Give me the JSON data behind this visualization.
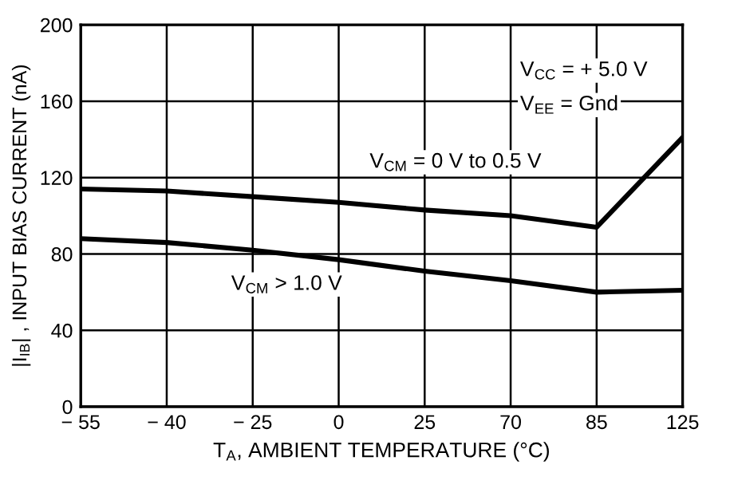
{
  "chart_data": {
    "type": "line",
    "xlabel": "T$_{A}$, AMBIENT TEMPERATURE (°C)",
    "ylabel": "|I$_{IB}$| , INPUT BIAS CURRENT (nA)",
    "categories": [
      "− 55",
      "− 40",
      "− 25",
      "0",
      "25",
      "70",
      "85",
      "125"
    ],
    "series": [
      {
        "color": "#000000",
        "values": [
          114,
          113,
          110,
          107,
          103,
          100,
          94,
          141
        ]
      },
      {
        "color": "#000000",
        "values": [
          88,
          86,
          82,
          77,
          71,
          66,
          60,
          61
        ]
      }
    ],
    "ylim": [
      0,
      200
    ],
    "yticks": [
      0,
      40,
      80,
      120,
      160,
      200
    ],
    "grid": true,
    "legend": false,
    "line_style": "solid",
    "marker": "none",
    "annotations": [
      "V$_{CC}$ = + 5.0 V",
      "V$_{EE}$ = Gnd",
      "V$_{CM}$ = 0 V to 0.5 V",
      "V$_{CM}$ > 1.0 V"
    ]
  }
}
